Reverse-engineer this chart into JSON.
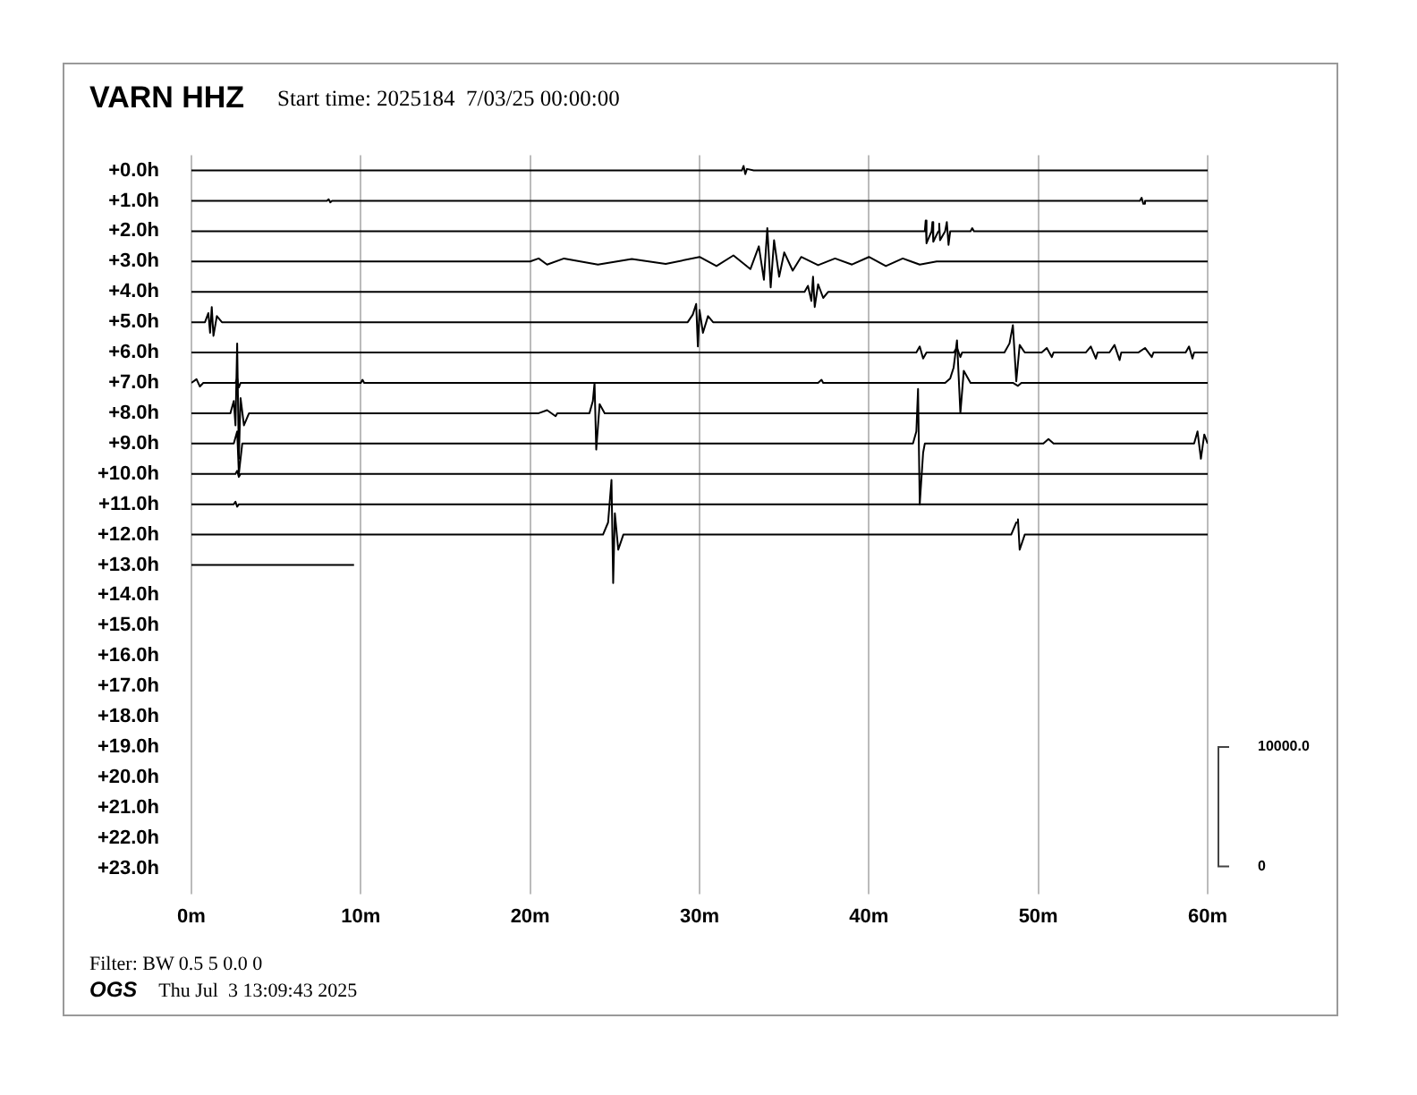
{
  "chart_data": {
    "type": "line",
    "title": "VARN HHZ",
    "subtitle": "Start time: 2025184  7/03/25 00:00:00",
    "annotations": [
      "Filter: BW 0.5 5 0.0 0",
      "OGS",
      "Thu Jul  3 13:09:43 2025"
    ],
    "xlim": [
      0,
      60
    ],
    "xticks": [
      {
        "value": 0,
        "label": "0m"
      },
      {
        "value": 10,
        "label": "10m"
      },
      {
        "value": 20,
        "label": "20m"
      },
      {
        "value": 30,
        "label": "30m"
      },
      {
        "value": 40,
        "label": "40m"
      },
      {
        "value": 50,
        "label": "50m"
      },
      {
        "value": 60,
        "label": "60m"
      }
    ],
    "ylim": [
      23.5,
      -0.5
    ],
    "yticks": [
      {
        "value": 0,
        "label": "+0.0h"
      },
      {
        "value": 1,
        "label": "+1.0h"
      },
      {
        "value": 2,
        "label": "+2.0h"
      },
      {
        "value": 3,
        "label": "+3.0h"
      },
      {
        "value": 4,
        "label": "+4.0h"
      },
      {
        "value": 5,
        "label": "+5.0h"
      },
      {
        "value": 6,
        "label": "+6.0h"
      },
      {
        "value": 7,
        "label": "+7.0h"
      },
      {
        "value": 8,
        "label": "+8.0h"
      },
      {
        "value": 9,
        "label": "+9.0h"
      },
      {
        "value": 10,
        "label": "+10.0h"
      },
      {
        "value": 11,
        "label": "+11.0h"
      },
      {
        "value": 12,
        "label": "+12.0h"
      },
      {
        "value": 13,
        "label": "+13.0h"
      },
      {
        "value": 14,
        "label": "+14.0h"
      },
      {
        "value": 15,
        "label": "+15.0h"
      },
      {
        "value": 16,
        "label": "+16.0h"
      },
      {
        "value": 17,
        "label": "+17.0h"
      },
      {
        "value": 18,
        "label": "+18.0h"
      },
      {
        "value": 19,
        "label": "+19.0h"
      },
      {
        "value": 20,
        "label": "+20.0h"
      },
      {
        "value": 21,
        "label": "+21.0h"
      },
      {
        "value": 22,
        "label": "+22.0h"
      },
      {
        "value": 23,
        "label": "+23.0h"
      }
    ],
    "y2lim": [
      -1430,
      59570
    ],
    "y2ticks": [
      0,
      {
        "value": 10000,
        "label": "10000.0"
      }
    ],
    "grid": "x",
    "legend": false,
    "marker": "none",
    "line_style": "solid",
    "series": [
      {
        "color": "#000000",
        "x": [
          0,
          32.5,
          32.6,
          32.7,
          32.8,
          33.2,
          60
        ],
        "values": [
          0,
          0,
          -0.15,
          0.12,
          -0.05,
          0,
          0
        ]
      },
      {
        "color": "#000000",
        "x": [
          0,
          8,
          8.1,
          8.2,
          8.3,
          56,
          56.1,
          56.2,
          56.3,
          60
        ],
        "values": [
          1,
          1,
          0.95,
          1.05,
          1,
          1,
          0.9,
          1.1,
          1,
          1
        ]
      },
      {
        "color": "#000000",
        "x": [
          0,
          43.3,
          43.35,
          43.4,
          43.7,
          43.75,
          43.8,
          44.1,
          44.15,
          44.2,
          44.5,
          44.6,
          44.7,
          44.8,
          46,
          46.1,
          46.2,
          60
        ],
        "values": [
          2,
          2,
          1.65,
          2.4,
          2,
          1.7,
          2.35,
          2,
          1.75,
          2.3,
          2,
          1.7,
          2.45,
          2,
          2,
          1.9,
          2,
          2
        ]
      },
      {
        "color": "#000000",
        "x": [
          0,
          20,
          20.5,
          21,
          22,
          24,
          26,
          28,
          30,
          31,
          32,
          33,
          33.5,
          33.8,
          34,
          34.2,
          34.4,
          34.7,
          35,
          35.5,
          36,
          37,
          38,
          39,
          40,
          41,
          42,
          43,
          44,
          60
        ],
        "values": [
          3,
          3,
          2.9,
          3.1,
          2.9,
          3.1,
          2.92,
          3.08,
          2.85,
          3.15,
          2.8,
          3.25,
          2.5,
          3.6,
          1.9,
          3.85,
          2.3,
          3.5,
          2.7,
          3.3,
          2.85,
          3.12,
          2.9,
          3.1,
          2.85,
          3.15,
          2.9,
          3.1,
          3,
          3
        ]
      },
      {
        "color": "#000000",
        "x": [
          0,
          36.2,
          36.4,
          36.6,
          36.7,
          36.8,
          37,
          37.3,
          37.6,
          60
        ],
        "values": [
          4,
          4,
          3.8,
          4.3,
          3.5,
          4.5,
          3.75,
          4.2,
          4,
          4
        ]
      },
      {
        "color": "#000000",
        "x": [
          0,
          0.8,
          1,
          1.1,
          1.2,
          1.3,
          1.5,
          1.8,
          29.3,
          29.6,
          29.8,
          29.9,
          30,
          30.2,
          30.5,
          30.8,
          60
        ],
        "values": [
          5,
          5,
          4.7,
          5.35,
          4.5,
          5.45,
          4.8,
          5,
          5,
          4.75,
          4.4,
          5.8,
          4.6,
          5.35,
          4.8,
          5,
          5
        ]
      },
      {
        "color": "#000000",
        "x": [
          0,
          42.8,
          43,
          43.2,
          43.4,
          45,
          45.2,
          45.4,
          45.5,
          48,
          48.3,
          48.5,
          48.7,
          48.9,
          49.2,
          50.2,
          50.5,
          50.8,
          50.9,
          52.8,
          53.1,
          53.4,
          53.5,
          54.2,
          54.5,
          54.8,
          54.9,
          55.9,
          56.3,
          56.7,
          56.8,
          58.7,
          58.9,
          59.1,
          59.2,
          60
        ],
        "values": [
          6,
          6,
          5.8,
          6.2,
          6,
          6,
          5.85,
          6.15,
          6,
          6,
          5.7,
          5.1,
          6.95,
          5.75,
          6,
          6,
          5.85,
          6.15,
          6,
          6,
          5.8,
          6.2,
          6,
          6,
          5.75,
          6.25,
          6,
          6,
          5.85,
          6.15,
          6,
          6,
          5.8,
          6.2,
          6,
          6
        ]
      },
      {
        "color": "#000000",
        "x": [
          0,
          0.3,
          0.5,
          0.7,
          2.6,
          2.7,
          2.8,
          2.9,
          10,
          10.1,
          10.2,
          37,
          37.2,
          37.3,
          44.5,
          44.8,
          45,
          45.2,
          45.4,
          45.6,
          46,
          48.5,
          48.8,
          49,
          60
        ],
        "values": [
          7,
          6.88,
          7.12,
          7,
          7,
          6.85,
          7.15,
          7,
          7,
          6.9,
          7,
          7,
          6.9,
          7,
          7,
          6.85,
          6.5,
          5.6,
          8.0,
          6.6,
          7,
          7,
          7.1,
          7,
          7
        ]
      },
      {
        "color": "#000000",
        "x": [
          0,
          2.3,
          2.5,
          2.6,
          2.7,
          2.8,
          2.9,
          3.1,
          3.4,
          20.5,
          21,
          21.5,
          21.6,
          23.5,
          23.7,
          23.8,
          23.9,
          24.1,
          24.4,
          60
        ],
        "values": [
          8,
          8,
          7.6,
          8.4,
          5.7,
          9.5,
          7.5,
          8.4,
          8,
          8,
          7.9,
          8.1,
          8,
          8,
          7.6,
          7.0,
          9.2,
          7.7,
          8,
          8
        ]
      },
      {
        "color": "#000000",
        "x": [
          0,
          2.5,
          2.6,
          2.7,
          2.8,
          3,
          42.6,
          42.8,
          42.9,
          43,
          43.2,
          43.3,
          50.3,
          50.6,
          50.9,
          59.2,
          59.4,
          59.6,
          59.8,
          60
        ],
        "values": [
          9,
          9,
          8.8,
          8.6,
          10.0,
          9,
          9,
          8.6,
          7.2,
          11.0,
          9.3,
          9,
          9,
          8.85,
          9,
          9,
          8.6,
          9.5,
          8.7,
          9
        ]
      },
      {
        "color": "#000000",
        "x": [
          0,
          2.6,
          2.7,
          2.8,
          2.9,
          60
        ],
        "values": [
          10,
          10,
          9.9,
          10.1,
          10,
          10
        ]
      },
      {
        "color": "#000000",
        "x": [
          0,
          2.5,
          2.6,
          2.7,
          2.8,
          60
        ],
        "values": [
          11,
          11,
          10.92,
          11.08,
          11,
          11
        ]
      },
      {
        "color": "#000000",
        "x": [
          0,
          24.3,
          24.6,
          24.8,
          24.9,
          25,
          25.2,
          25.5,
          48.4,
          48.7,
          48.8,
          48.9,
          49.2,
          60
        ],
        "values": [
          12,
          12,
          11.6,
          10.2,
          13.6,
          11.3,
          12.5,
          12,
          12,
          11.6,
          11.5,
          12.5,
          12,
          12
        ]
      },
      {
        "color": "#000000",
        "x": [
          0,
          9.6
        ],
        "values": [
          13,
          13
        ]
      }
    ]
  }
}
